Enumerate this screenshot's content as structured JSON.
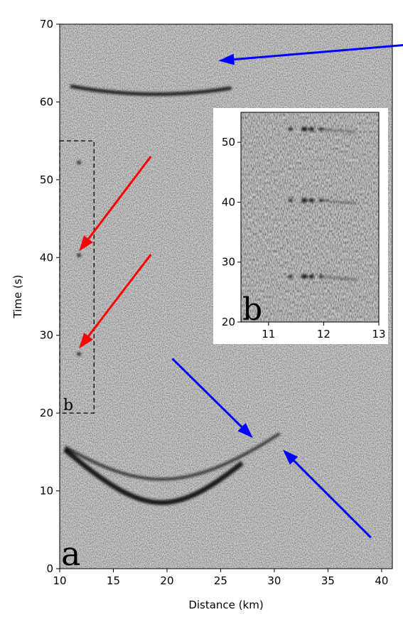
{
  "chart_data": [
    {
      "type": "heatmap",
      "panel_label": "a",
      "xlabel": "Distance (km)",
      "ylabel": "Time (s)",
      "xlim": [
        10,
        41
      ],
      "ylim": [
        0,
        70
      ],
      "x_ticks": [
        10,
        15,
        20,
        25,
        30,
        35,
        40
      ],
      "y_ticks": [
        0,
        10,
        20,
        30,
        40,
        50,
        60,
        70
      ],
      "colormap": "grayscale",
      "highlight_box": {
        "label": "b",
        "x": [
          10,
          13.2
        ],
        "y": [
          20,
          55
        ]
      },
      "arrows": [
        {
          "color": "#0000ff",
          "from": [
            48,
            68
          ],
          "to": [
            24.8,
            65.3
          ]
        },
        {
          "color": "#ff0000",
          "from": [
            18.5,
            53
          ],
          "to": [
            11.8,
            40.8
          ]
        },
        {
          "color": "#ff0000",
          "from": [
            18.5,
            40.4
          ],
          "to": [
            11.8,
            28.3
          ]
        },
        {
          "color": "#0000ff",
          "from": [
            20.5,
            27
          ],
          "to": [
            28,
            16.8
          ]
        },
        {
          "color": "#0000ff",
          "from": [
            39,
            4
          ],
          "to": [
            30.8,
            15.3
          ]
        }
      ]
    },
    {
      "type": "heatmap",
      "panel_label": "b",
      "xlim": [
        10.5,
        13
      ],
      "ylim": [
        20,
        55
      ],
      "x_ticks": [
        11,
        12,
        13
      ],
      "y_ticks": [
        20,
        30,
        40,
        50
      ],
      "colormap": "grayscale"
    }
  ],
  "colors": {
    "blue_arrow": "#0000ff",
    "red_arrow": "#ff0000"
  }
}
